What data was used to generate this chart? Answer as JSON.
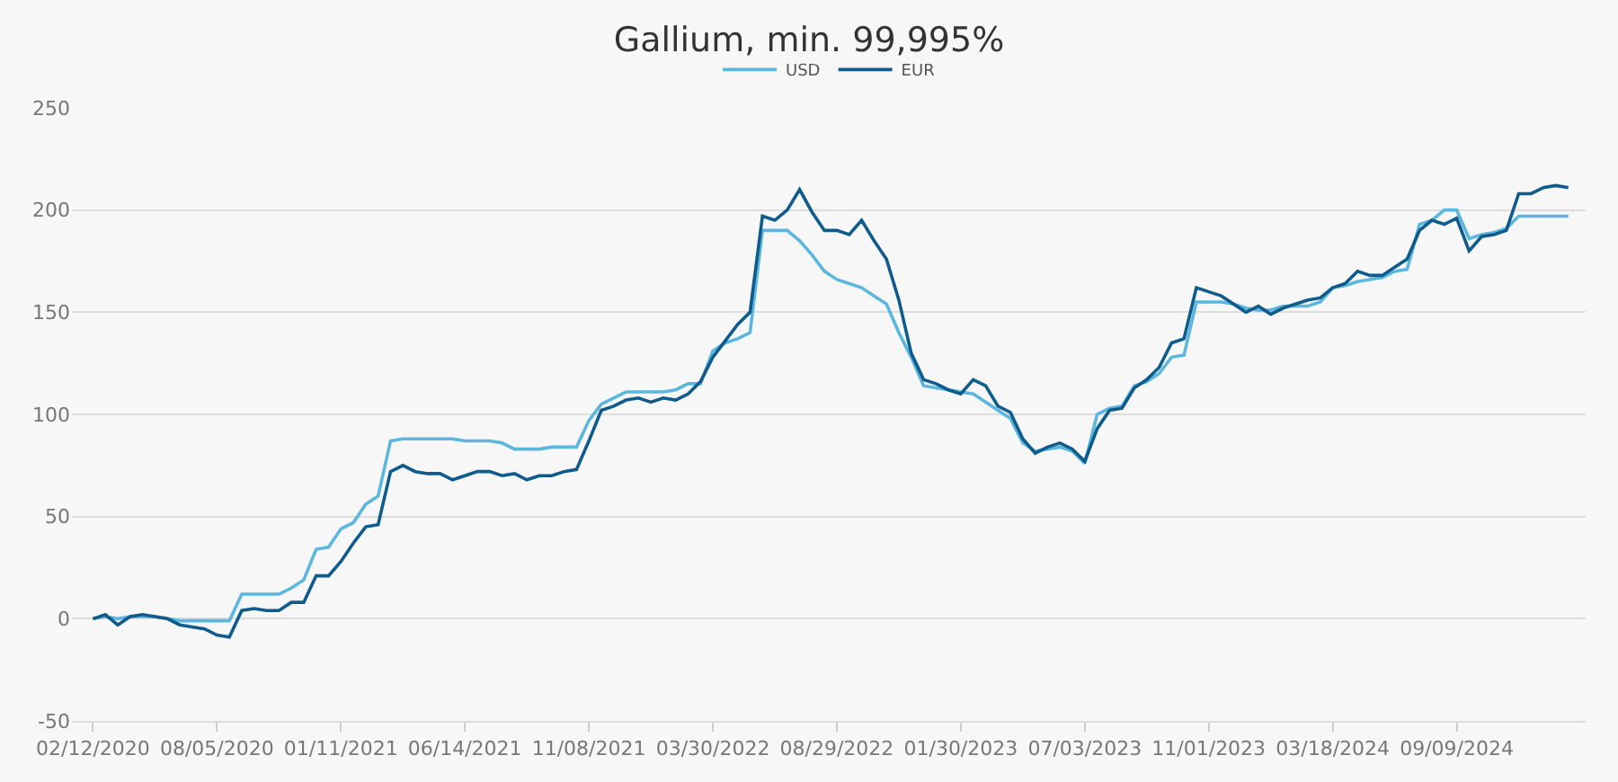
{
  "chart_data": {
    "type": "line",
    "title": "Gallium, min. 99,995%",
    "categories": [
      "02/12/2020",
      null,
      null,
      null,
      null,
      null,
      null,
      null,
      null,
      null,
      "08/05/2020",
      null,
      null,
      null,
      null,
      null,
      null,
      null,
      null,
      null,
      "01/11/2021",
      null,
      null,
      null,
      null,
      null,
      null,
      null,
      null,
      null,
      "06/14/2021",
      null,
      null,
      null,
      null,
      null,
      null,
      null,
      null,
      null,
      "11/08/2021",
      null,
      null,
      null,
      null,
      null,
      null,
      null,
      null,
      null,
      "03/30/2022",
      null,
      null,
      null,
      null,
      null,
      null,
      null,
      null,
      null,
      "08/29/2022",
      null,
      null,
      null,
      null,
      null,
      null,
      null,
      null,
      null,
      "01/30/2023",
      null,
      null,
      null,
      null,
      null,
      null,
      null,
      null,
      null,
      "07/03/2023",
      null,
      null,
      null,
      null,
      null,
      null,
      null,
      null,
      null,
      "11/01/2023",
      null,
      null,
      null,
      null,
      null,
      null,
      null,
      null,
      null,
      "03/18/2024",
      null,
      null,
      null,
      null,
      null,
      null,
      null,
      null,
      null,
      "09/09/2024",
      null,
      null,
      null,
      null,
      null,
      null,
      null,
      null,
      null
    ],
    "series": [
      {
        "name": "USD",
        "color": "#5bb7dd",
        "values": [
          0,
          1,
          0,
          1,
          1,
          1,
          0,
          -1,
          -1,
          -1,
          -1,
          -1,
          12,
          12,
          12,
          12,
          15,
          19,
          34,
          35,
          44,
          47,
          56,
          60,
          87,
          88,
          88,
          88,
          88,
          88,
          87,
          87,
          87,
          86,
          83,
          83,
          83,
          84,
          84,
          84,
          97,
          105,
          108,
          111,
          111,
          111,
          111,
          112,
          115,
          115,
          131,
          135,
          137,
          140,
          190,
          190,
          190,
          185,
          178,
          170,
          166,
          164,
          162,
          158,
          154,
          140,
          128,
          114,
          113,
          112,
          111,
          110,
          106,
          102,
          98,
          86,
          82,
          83,
          84,
          82,
          76,
          100,
          103,
          104,
          114,
          116,
          120,
          128,
          129,
          155,
          155,
          155,
          154,
          152,
          151,
          151,
          153,
          153,
          153,
          155,
          162,
          163,
          165,
          166,
          167,
          170,
          171,
          193,
          195,
          200,
          200,
          186,
          188,
          189,
          191,
          197,
          197,
          197,
          197,
          197
        ]
      },
      {
        "name": "EUR",
        "color": "#0e5b8c",
        "values": [
          0,
          2,
          -3,
          1,
          2,
          1,
          0,
          -3,
          -4,
          -5,
          -8,
          -9,
          4,
          5,
          4,
          4,
          8,
          8,
          21,
          21,
          28,
          37,
          45,
          46,
          72,
          75,
          72,
          71,
          71,
          68,
          70,
          72,
          72,
          70,
          71,
          68,
          70,
          70,
          72,
          73,
          87,
          102,
          104,
          107,
          108,
          106,
          108,
          107,
          110,
          116,
          128,
          136,
          144,
          150,
          197,
          195,
          200,
          210,
          199,
          190,
          190,
          188,
          195,
          185,
          176,
          156,
          130,
          117,
          115,
          112,
          110,
          117,
          114,
          104,
          101,
          88,
          81,
          84,
          86,
          83,
          77,
          93,
          102,
          103,
          113,
          117,
          123,
          135,
          137,
          162,
          160,
          158,
          154,
          150,
          153,
          149,
          152,
          154,
          156,
          157,
          162,
          164,
          170,
          168,
          168,
          172,
          176,
          190,
          195,
          193,
          196,
          180,
          187,
          188,
          190,
          208,
          208,
          211,
          212,
          211
        ]
      }
    ],
    "ylim": [
      -50,
      250
    ],
    "yticks": [
      -50,
      0,
      50,
      100,
      150,
      200,
      250
    ],
    "grid": "y",
    "legend": "top"
  }
}
